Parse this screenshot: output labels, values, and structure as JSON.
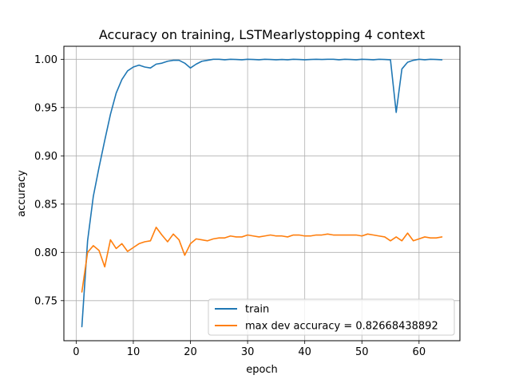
{
  "chart_data": {
    "type": "line",
    "title": "Accuracy on training, LSTMearlystopping 4 context",
    "xlabel": "epoch",
    "ylabel": "accuracy",
    "xlim": [
      -2.15,
      67.15
    ],
    "ylim": [
      0.7085,
      1.0135
    ],
    "xticks": [
      0,
      10,
      20,
      30,
      40,
      50,
      60
    ],
    "yticks": [
      0.75,
      0.8,
      0.85,
      0.9,
      0.95,
      1.0
    ],
    "xtick_labels": [
      "0",
      "10",
      "20",
      "30",
      "40",
      "50",
      "60"
    ],
    "ytick_labels": [
      "0.75",
      "0.80",
      "0.85",
      "0.90",
      "0.95",
      "1.00"
    ],
    "grid": true,
    "legend_position": "lower-right",
    "x": [
      1,
      2,
      3,
      4,
      5,
      6,
      7,
      8,
      9,
      10,
      11,
      12,
      13,
      14,
      15,
      16,
      17,
      18,
      19,
      20,
      21,
      22,
      23,
      24,
      25,
      26,
      27,
      28,
      29,
      30,
      31,
      32,
      33,
      34,
      35,
      36,
      37,
      38,
      39,
      40,
      41,
      42,
      43,
      44,
      45,
      46,
      47,
      48,
      49,
      50,
      51,
      52,
      53,
      54,
      55,
      56,
      57,
      58,
      59,
      60,
      61,
      62,
      63,
      64
    ],
    "series": [
      {
        "name": "train",
        "color": "#1f77b4",
        "values": [
          0.723,
          0.812,
          0.858,
          0.888,
          0.916,
          0.943,
          0.965,
          0.979,
          0.988,
          0.992,
          0.994,
          0.992,
          0.991,
          0.995,
          0.996,
          0.998,
          0.999,
          0.999,
          0.996,
          0.991,
          0.995,
          0.998,
          0.999,
          1.0,
          1.0,
          0.9995,
          1.0,
          0.9998,
          0.9995,
          1.0,
          0.9998,
          0.9995,
          1.0,
          0.9998,
          0.9995,
          0.9998,
          0.9995,
          1.0,
          0.9998,
          0.9995,
          0.9998,
          1.0,
          0.9998,
          1.0,
          1.0,
          0.9995,
          1.0,
          0.9998,
          0.9995,
          1.0,
          0.9998,
          0.9995,
          1.0,
          0.9998,
          0.9995,
          0.945,
          0.99,
          0.997,
          0.999,
          1.0,
          0.9995,
          1.0,
          0.9998,
          0.9995
        ]
      },
      {
        "name": "max dev accuracy = 0.82668438892",
        "color": "#ff7f0e",
        "values": [
          0.759,
          0.8,
          0.807,
          0.802,
          0.785,
          0.813,
          0.804,
          0.809,
          0.801,
          0.805,
          0.809,
          0.811,
          0.812,
          0.826,
          0.818,
          0.811,
          0.819,
          0.813,
          0.797,
          0.809,
          0.814,
          0.813,
          0.812,
          0.814,
          0.815,
          0.815,
          0.817,
          0.816,
          0.816,
          0.818,
          0.817,
          0.816,
          0.817,
          0.818,
          0.817,
          0.817,
          0.816,
          0.818,
          0.818,
          0.817,
          0.817,
          0.818,
          0.818,
          0.819,
          0.818,
          0.818,
          0.818,
          0.818,
          0.818,
          0.817,
          0.819,
          0.818,
          0.817,
          0.816,
          0.812,
          0.816,
          0.812,
          0.82,
          0.812,
          0.814,
          0.816,
          0.815,
          0.815,
          0.816
        ]
      }
    ]
  }
}
